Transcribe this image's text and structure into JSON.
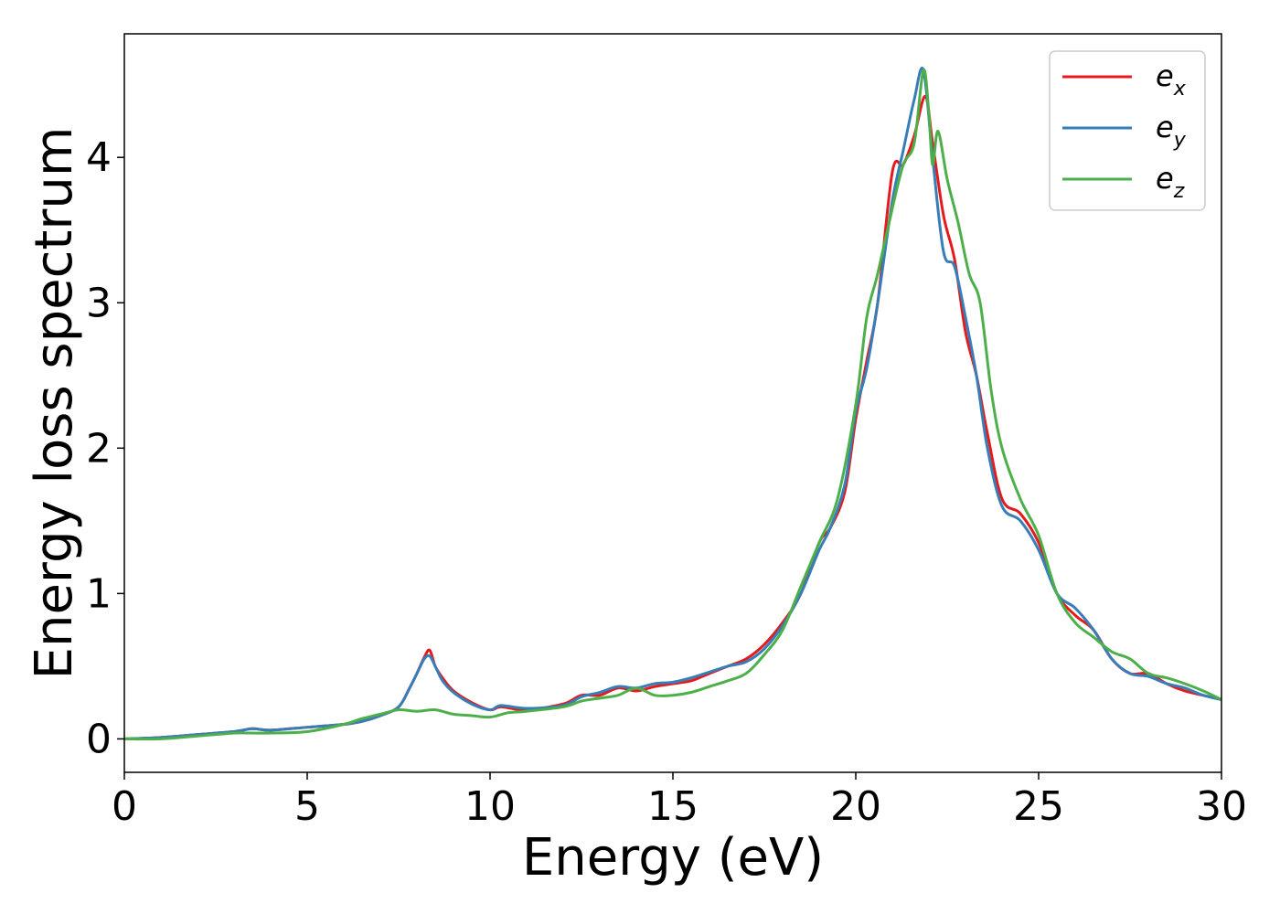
{
  "chart_data": {
    "type": "line",
    "title": "",
    "xlabel": "Energy (eV)",
    "ylabel": "Energy loss spectrum",
    "xlim": [
      0,
      30
    ],
    "ylim": [
      -0.23,
      4.85
    ],
    "xticks": [
      0,
      5,
      10,
      15,
      20,
      25,
      30
    ],
    "yticks": [
      0,
      1,
      2,
      3,
      4
    ],
    "grid": false,
    "legend_position": "top-right",
    "legend": [
      {
        "base": "e",
        "sub": "x",
        "color": "#e41a1c"
      },
      {
        "base": "e",
        "sub": "y",
        "color": "#377eb8"
      },
      {
        "base": "e",
        "sub": "z",
        "color": "#4daf4a"
      }
    ],
    "series": [
      {
        "name": "e_x",
        "color": "#e41a1c",
        "x": [
          0,
          1,
          2,
          3,
          3.5,
          4,
          5,
          6,
          6.5,
          7,
          7.5,
          7.8,
          8.0,
          8.2,
          8.35,
          8.5,
          8.7,
          9.0,
          9.5,
          10,
          10.3,
          11,
          12,
          12.5,
          13,
          13.5,
          14,
          14.5,
          15,
          15.5,
          16,
          16.5,
          17,
          17.5,
          18,
          18.5,
          19,
          19.3,
          19.7,
          20,
          20.3,
          20.6,
          21,
          21.3,
          21.6,
          21.9,
          22.1,
          22.4,
          22.7,
          23.0,
          23.3,
          23.6,
          24,
          24.5,
          25,
          25.5,
          26,
          26.5,
          27,
          27.5,
          28,
          28.5,
          29,
          29.5,
          30
        ],
        "y": [
          0.0,
          0.01,
          0.03,
          0.05,
          0.07,
          0.06,
          0.08,
          0.1,
          0.12,
          0.16,
          0.22,
          0.35,
          0.45,
          0.56,
          0.61,
          0.5,
          0.42,
          0.33,
          0.25,
          0.2,
          0.22,
          0.2,
          0.24,
          0.3,
          0.3,
          0.35,
          0.33,
          0.36,
          0.38,
          0.4,
          0.45,
          0.5,
          0.55,
          0.65,
          0.8,
          1.0,
          1.35,
          1.45,
          1.7,
          2.2,
          2.6,
          3.0,
          3.9,
          3.95,
          4.15,
          4.42,
          4.1,
          3.6,
          3.3,
          2.8,
          2.5,
          2.1,
          1.65,
          1.55,
          1.35,
          1.0,
          0.85,
          0.75,
          0.55,
          0.45,
          0.45,
          0.38,
          0.33,
          0.3,
          0.27
        ]
      },
      {
        "name": "e_y",
        "color": "#377eb8",
        "x": [
          0,
          1,
          2,
          3,
          3.5,
          4,
          5,
          6,
          6.5,
          7,
          7.5,
          7.8,
          8.0,
          8.2,
          8.35,
          8.5,
          8.7,
          9.0,
          9.5,
          10,
          10.3,
          11,
          12,
          12.5,
          13,
          13.5,
          14,
          14.5,
          15,
          15.5,
          16,
          16.5,
          17,
          17.5,
          18,
          18.5,
          19,
          19.3,
          19.7,
          20,
          20.3,
          20.6,
          21,
          21.3,
          21.6,
          21.85,
          22.1,
          22.4,
          22.7,
          23.0,
          23.3,
          23.6,
          24,
          24.5,
          25,
          25.5,
          26,
          26.5,
          27,
          27.5,
          28,
          28.5,
          29,
          29.5,
          30
        ],
        "y": [
          0.0,
          0.01,
          0.03,
          0.05,
          0.07,
          0.06,
          0.08,
          0.1,
          0.12,
          0.16,
          0.22,
          0.35,
          0.45,
          0.55,
          0.57,
          0.5,
          0.4,
          0.32,
          0.24,
          0.2,
          0.23,
          0.21,
          0.23,
          0.29,
          0.32,
          0.36,
          0.35,
          0.38,
          0.39,
          0.42,
          0.46,
          0.5,
          0.53,
          0.62,
          0.78,
          1.0,
          1.3,
          1.45,
          1.75,
          2.25,
          2.55,
          3.0,
          3.7,
          4.05,
          4.4,
          4.6,
          4.0,
          3.35,
          3.25,
          2.9,
          2.5,
          2.0,
          1.6,
          1.5,
          1.3,
          1.0,
          0.9,
          0.75,
          0.55,
          0.45,
          0.43,
          0.38,
          0.35,
          0.3,
          0.27
        ]
      },
      {
        "name": "e_z",
        "color": "#4daf4a",
        "x": [
          0,
          1,
          2,
          3,
          3.5,
          4,
          5,
          6,
          6.5,
          7,
          7.5,
          8,
          8.5,
          9,
          9.5,
          10,
          10.5,
          11,
          12,
          12.5,
          13,
          13.5,
          14,
          14.5,
          15,
          15.5,
          16,
          16.5,
          17,
          17.5,
          18,
          18.5,
          19,
          19.5,
          20,
          20.3,
          20.6,
          21,
          21.3,
          21.6,
          21.85,
          22.0,
          22.1,
          22.25,
          22.5,
          22.8,
          23.1,
          23.4,
          23.7,
          24,
          24.5,
          25,
          25.5,
          26,
          26.5,
          27,
          27.5,
          28,
          28.5,
          29,
          29.5,
          30
        ],
        "y": [
          0.0,
          0.0,
          0.02,
          0.04,
          0.04,
          0.04,
          0.05,
          0.1,
          0.14,
          0.17,
          0.2,
          0.19,
          0.2,
          0.17,
          0.16,
          0.15,
          0.18,
          0.19,
          0.22,
          0.26,
          0.28,
          0.3,
          0.35,
          0.3,
          0.3,
          0.32,
          0.36,
          0.4,
          0.45,
          0.58,
          0.75,
          1.05,
          1.35,
          1.65,
          2.3,
          2.9,
          3.2,
          3.65,
          3.95,
          4.1,
          4.6,
          4.3,
          3.95,
          4.18,
          3.85,
          3.55,
          3.2,
          3.0,
          2.4,
          2.0,
          1.65,
          1.4,
          1.0,
          0.8,
          0.7,
          0.6,
          0.55,
          0.45,
          0.42,
          0.38,
          0.33,
          0.27
        ]
      }
    ]
  }
}
